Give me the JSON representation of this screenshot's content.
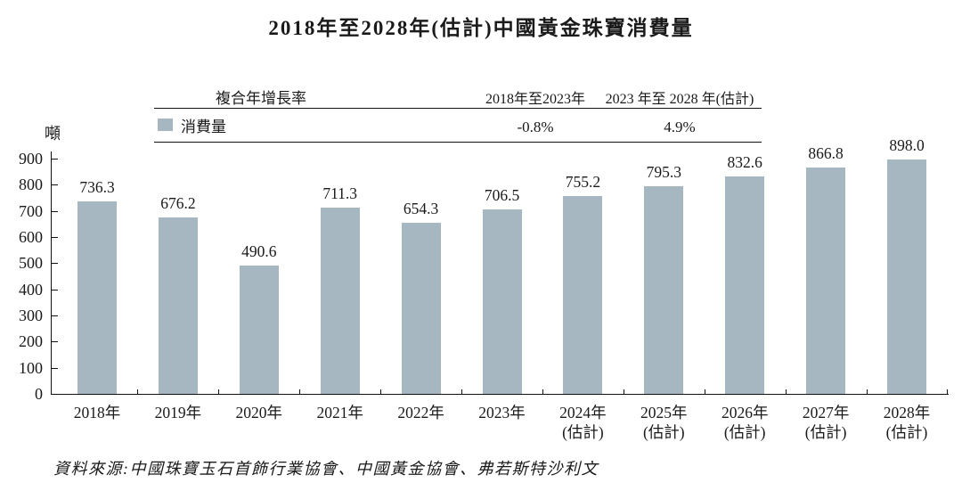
{
  "unit_label": "噸",
  "legend": {
    "cagr_header": "複合年增長率",
    "period1_header": "2018年至2023年",
    "period2_header": "2023 年至 2028 年(估計)",
    "series_label": "消費量",
    "period1_cagr": "-0.8%",
    "period2_cagr": "4.9%"
  },
  "source_note": "資料來源:中國珠寶玉石首飾行業協會、中國黃金協會、弗若斯特沙利文",
  "chart_data": {
    "type": "bar",
    "title": "2018年至2028年(估計)中國黃金珠寶消費量",
    "ylabel": "噸",
    "categories": [
      {
        "label": "2018年",
        "sublabel": ""
      },
      {
        "label": "2019年",
        "sublabel": ""
      },
      {
        "label": "2020年",
        "sublabel": ""
      },
      {
        "label": "2021年",
        "sublabel": ""
      },
      {
        "label": "2022年",
        "sublabel": ""
      },
      {
        "label": "2023年",
        "sublabel": ""
      },
      {
        "label": "2024年",
        "sublabel": "(估計)"
      },
      {
        "label": "2025年",
        "sublabel": "(估計)"
      },
      {
        "label": "2026年",
        "sublabel": "(估計)"
      },
      {
        "label": "2027年",
        "sublabel": "(估計)"
      },
      {
        "label": "2028年",
        "sublabel": "(估計)"
      }
    ],
    "values": [
      736.3,
      676.2,
      490.6,
      711.3,
      654.3,
      706.5,
      755.2,
      795.3,
      832.6,
      866.8,
      898.0
    ],
    "value_labels": [
      "736.3",
      "676.2",
      "490.6",
      "711.3",
      "654.3",
      "706.5",
      "755.2",
      "795.3",
      "832.6",
      "866.8",
      "898.0"
    ],
    "series_name": "消費量",
    "ylim": [
      0,
      900
    ],
    "ytick_step": 100,
    "bar_color": "#a6b7c1",
    "grid": false,
    "legend_position": "top",
    "cagr_annotations": [
      {
        "period": "2018年至2023年",
        "value": "-0.8%"
      },
      {
        "period": "2023 年至 2028 年(估計)",
        "value": "4.9%"
      }
    ]
  }
}
